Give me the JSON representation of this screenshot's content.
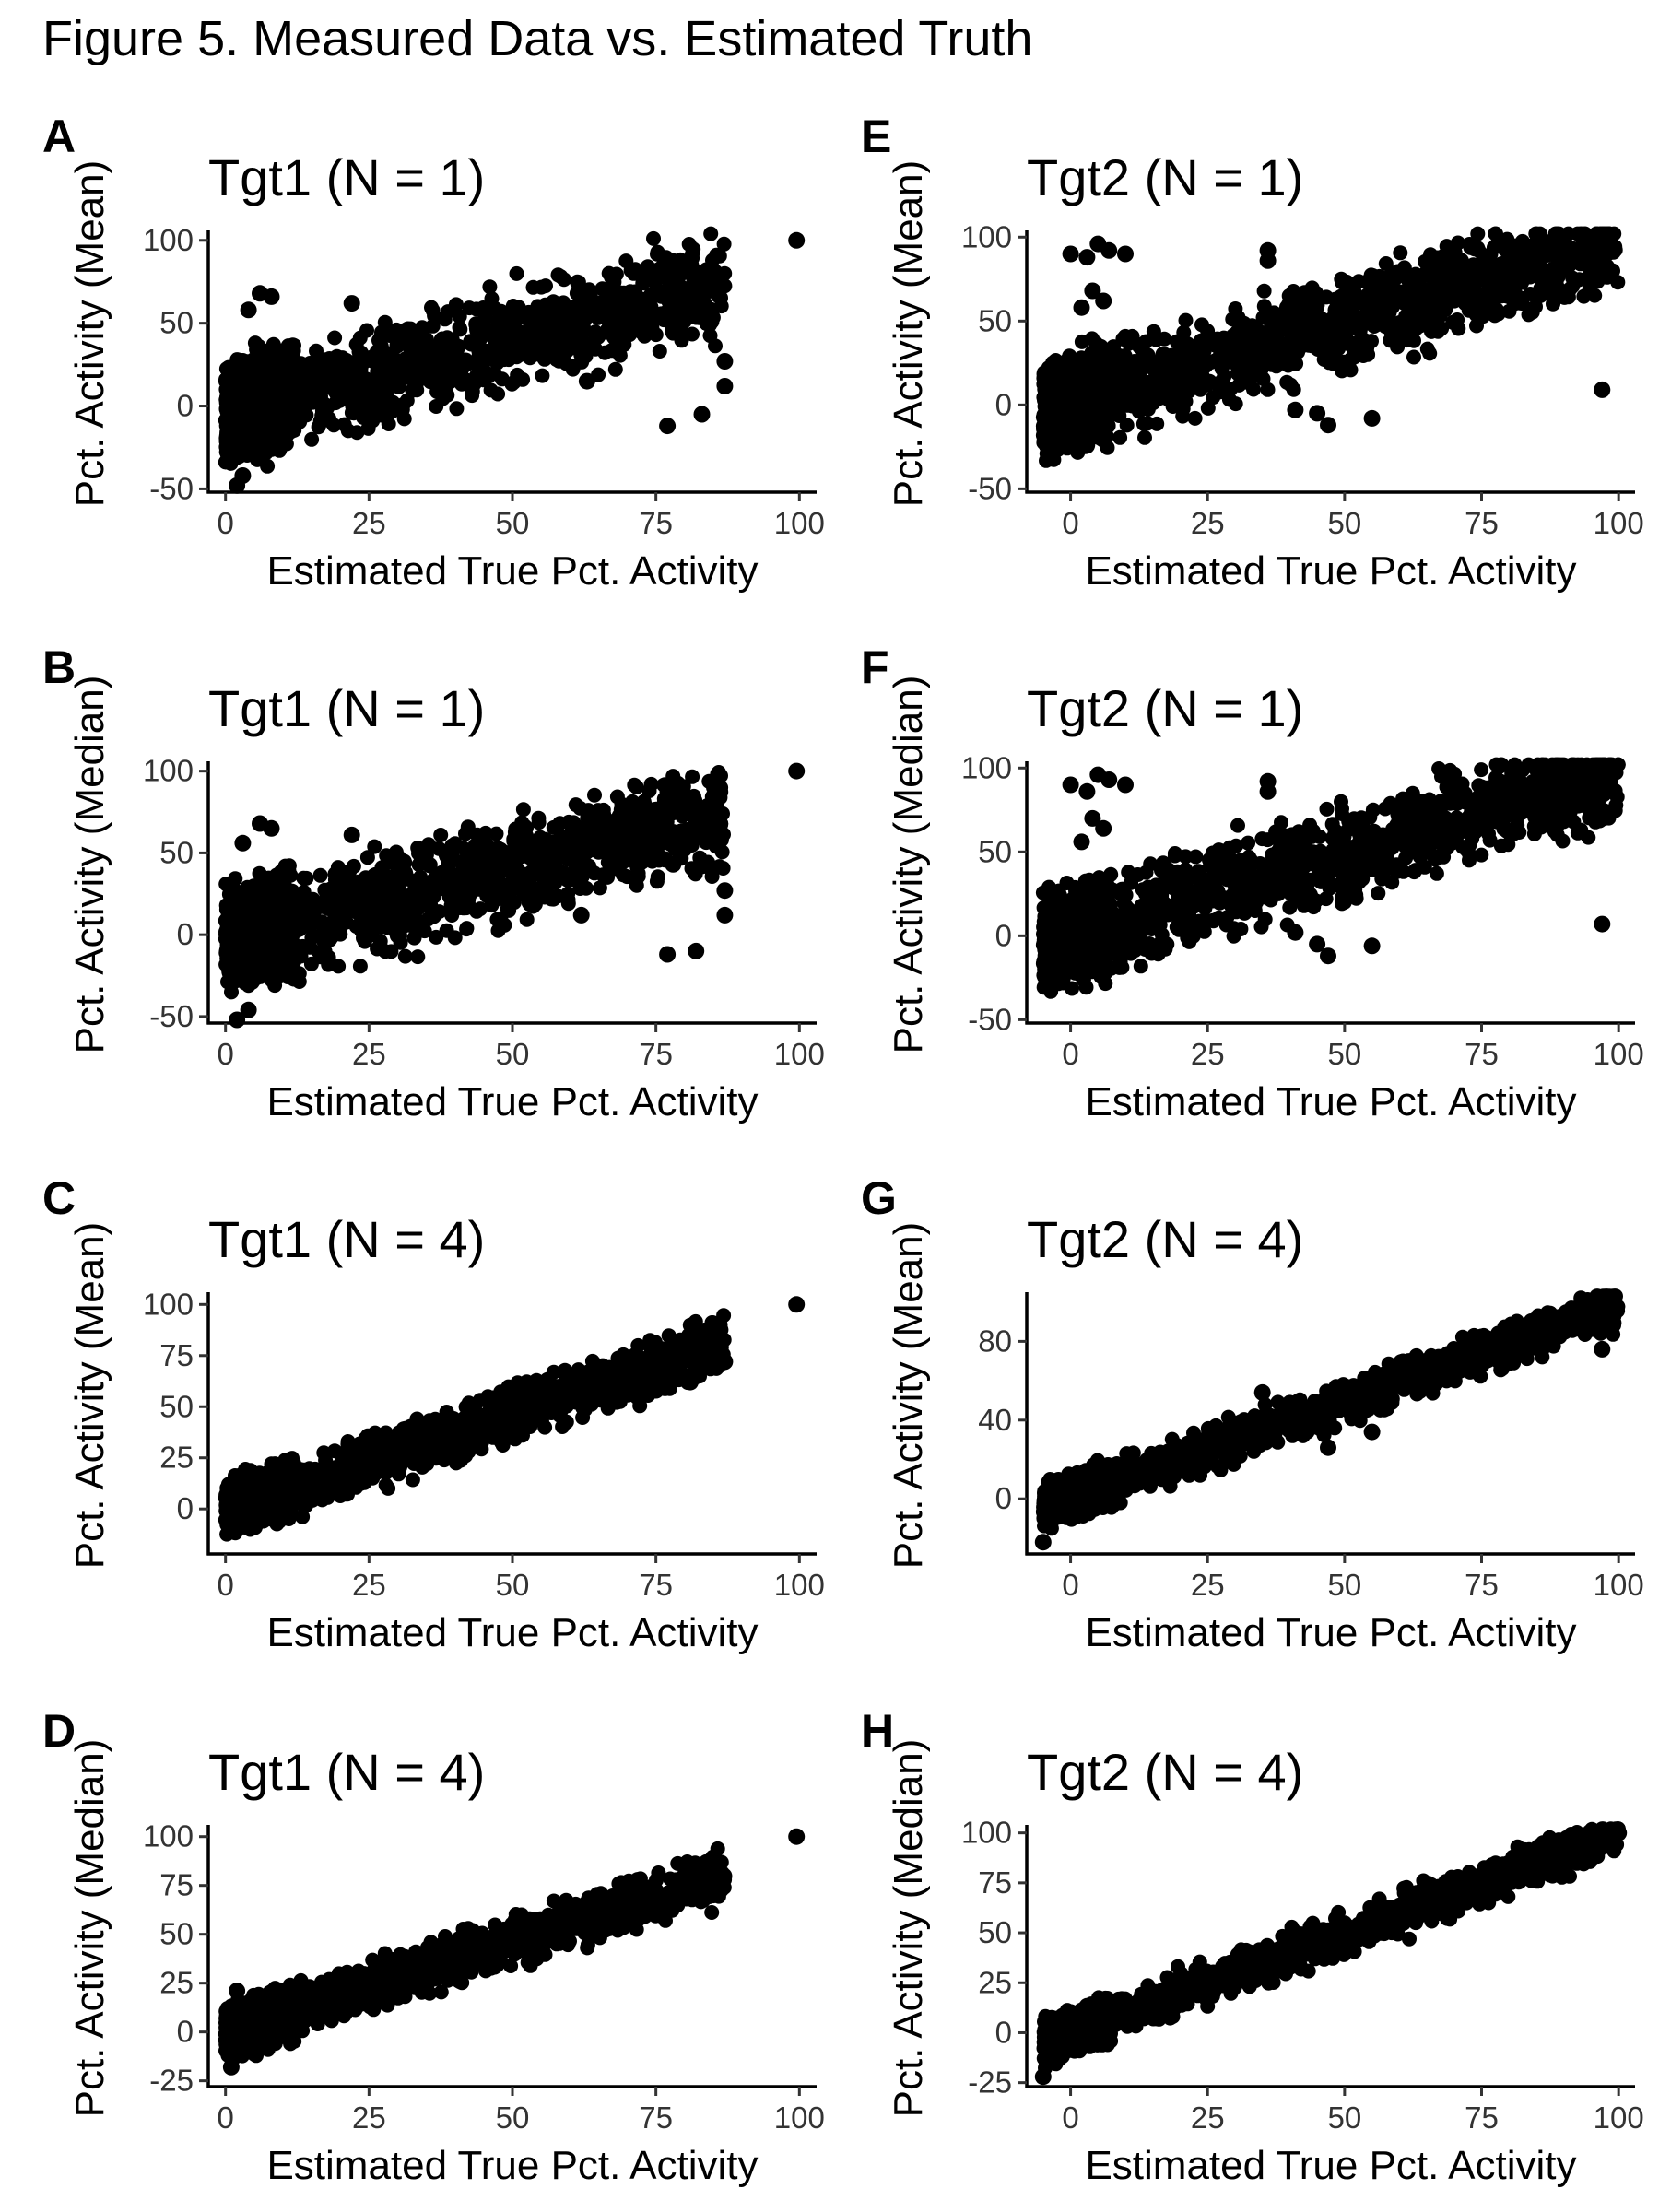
{
  "figure": {
    "title": "Figure 5. Measured Data vs. Estimated Truth"
  },
  "colors": {
    "points": "#000000",
    "axis": "#000000",
    "background": "#ffffff"
  },
  "chart_data": [
    {
      "panel": "A",
      "type": "scatter",
      "title": "Tgt1 (N = 1)",
      "xlabel": "Estimated True Pct. Activity",
      "ylabel": "Pct. Activity (Mean)",
      "xlim": [
        -3,
        103
      ],
      "ylim": [
        -52,
        106
      ],
      "xticks": [
        0,
        25,
        50,
        75,
        100
      ],
      "yticks": [
        -50,
        0,
        50,
        100
      ],
      "grid": false,
      "legend": "none",
      "trend": {
        "x_range": [
          0,
          87
        ],
        "slope": 0.88,
        "intercept": -3,
        "noise": 14
      },
      "points": [
        [
          99.5,
          100
        ],
        [
          6,
          68
        ],
        [
          8,
          66
        ],
        [
          4,
          58
        ],
        [
          22,
          62
        ],
        [
          77,
          -12
        ],
        [
          83,
          -5
        ],
        [
          87,
          12
        ],
        [
          87,
          27
        ],
        [
          78,
          45
        ],
        [
          63,
          15
        ],
        [
          2,
          -48
        ],
        [
          3,
          -42
        ]
      ]
    },
    {
      "panel": "B",
      "type": "scatter",
      "title": "Tgt1 (N = 1)",
      "xlabel": "Estimated True Pct. Activity",
      "ylabel": "Pct. Activity (Median)",
      "xlim": [
        -3,
        103
      ],
      "ylim": [
        -54,
        106
      ],
      "xticks": [
        0,
        25,
        50,
        75,
        100
      ],
      "yticks": [
        -50,
        0,
        50,
        100
      ],
      "grid": false,
      "legend": "none",
      "trend": {
        "x_range": [
          0,
          87
        ],
        "slope": 0.88,
        "intercept": -3,
        "noise": 14
      },
      "points": [
        [
          99.5,
          100
        ],
        [
          6,
          68
        ],
        [
          8,
          65
        ],
        [
          3,
          56
        ],
        [
          22,
          61
        ],
        [
          77,
          -12
        ],
        [
          82,
          -10
        ],
        [
          87,
          12
        ],
        [
          87,
          27
        ],
        [
          78,
          43
        ],
        [
          62,
          12
        ],
        [
          2,
          -52
        ],
        [
          4,
          -46
        ]
      ]
    },
    {
      "panel": "C",
      "type": "scatter",
      "title": "Tgt1 (N = 4)",
      "xlabel": "Estimated True Pct. Activity",
      "ylabel": "Pct. Activity (Mean)",
      "xlim": [
        -3,
        103
      ],
      "ylim": [
        -22,
        106
      ],
      "xticks": [
        0,
        25,
        50,
        75,
        100
      ],
      "yticks": [
        0,
        25,
        50,
        75,
        100
      ],
      "grid": false,
      "legend": "none",
      "trend": {
        "x_range": [
          0,
          87
        ],
        "slope": 0.92,
        "intercept": 0,
        "noise": 6
      },
      "points": [
        [
          99.5,
          100
        ],
        [
          75,
          58
        ],
        [
          81,
          62
        ],
        [
          87,
          72
        ]
      ]
    },
    {
      "panel": "D",
      "type": "scatter",
      "title": "Tgt1 (N = 4)",
      "xlabel": "Estimated True Pct. Activity",
      "ylabel": "Pct. Activity (Median)",
      "xlim": [
        -3,
        103
      ],
      "ylim": [
        -28,
        106
      ],
      "xticks": [
        0,
        25,
        50,
        75,
        100
      ],
      "yticks": [
        -25,
        0,
        25,
        50,
        75,
        100
      ],
      "grid": false,
      "legend": "none",
      "trend": {
        "x_range": [
          0,
          87
        ],
        "slope": 0.94,
        "intercept": -1,
        "noise": 6
      },
      "points": [
        [
          99.5,
          100
        ],
        [
          2,
          21
        ],
        [
          1,
          -18
        ]
      ]
    },
    {
      "panel": "E",
      "type": "scatter",
      "title": "Tgt2 (N = 1)",
      "xlabel": "Estimated True Pct. Activity",
      "ylabel": "Pct. Activity (Mean)",
      "xlim": [
        -8,
        103
      ],
      "ylim": [
        -52,
        104
      ],
      "xticks": [
        0,
        25,
        50,
        75,
        100
      ],
      "yticks": [
        -50,
        0,
        50,
        100
      ],
      "grid": false,
      "legend": "none",
      "trend": {
        "x_range": [
          -5,
          100
        ],
        "slope": 0.97,
        "intercept": 1,
        "noise": 13
      },
      "points": [
        [
          0,
          90
        ],
        [
          3,
          88
        ],
        [
          5,
          96
        ],
        [
          7,
          92
        ],
        [
          10,
          90
        ],
        [
          4,
          68
        ],
        [
          6,
          62
        ],
        [
          2,
          58
        ],
        [
          36,
          92
        ],
        [
          36,
          86
        ],
        [
          97,
          9
        ],
        [
          45,
          -5
        ],
        [
          47,
          -12
        ],
        [
          55,
          -8
        ],
        [
          41,
          -3
        ]
      ]
    },
    {
      "panel": "F",
      "type": "scatter",
      "title": "Tgt2 (N = 1)",
      "xlabel": "Estimated True Pct. Activity",
      "ylabel": "Pct. Activity (Median)",
      "xlim": [
        -8,
        103
      ],
      "ylim": [
        -52,
        104
      ],
      "xticks": [
        0,
        25,
        50,
        75,
        100
      ],
      "yticks": [
        -50,
        0,
        50,
        100
      ],
      "grid": false,
      "legend": "none",
      "trend": {
        "x_range": [
          -5,
          100
        ],
        "slope": 0.97,
        "intercept": 1,
        "noise": 13
      },
      "points": [
        [
          0,
          90
        ],
        [
          3,
          86
        ],
        [
          5,
          96
        ],
        [
          7,
          93
        ],
        [
          10,
          90
        ],
        [
          4,
          70
        ],
        [
          6,
          64
        ],
        [
          2,
          56
        ],
        [
          36,
          92
        ],
        [
          36,
          86
        ],
        [
          97,
          7
        ],
        [
          45,
          -5
        ],
        [
          47,
          -12
        ],
        [
          55,
          -6
        ],
        [
          41,
          2
        ]
      ]
    },
    {
      "panel": "G",
      "type": "scatter",
      "title": "Tgt2 (N = 4)",
      "xlabel": "Estimated True Pct. Activity",
      "ylabel": "Pct. Activity (Mean)",
      "xlim": [
        -8,
        103
      ],
      "ylim": [
        -28,
        105
      ],
      "xticks": [
        0,
        25,
        50,
        75,
        100
      ],
      "yticks": [
        0,
        40,
        80
      ],
      "grid": false,
      "legend": "none",
      "trend": {
        "x_range": [
          -5,
          100
        ],
        "slope": 0.97,
        "intercept": 1,
        "noise": 5
      },
      "points": [
        [
          97,
          76
        ],
        [
          35,
          54
        ],
        [
          47,
          26
        ],
        [
          55,
          34
        ],
        [
          -5,
          -22
        ]
      ]
    },
    {
      "panel": "H",
      "type": "scatter",
      "title": "Tgt2 (N = 4)",
      "xlabel": "Estimated True Pct. Activity",
      "ylabel": "Pct. Activity (Median)",
      "xlim": [
        -8,
        103
      ],
      "ylim": [
        -27,
        104
      ],
      "xticks": [
        0,
        25,
        50,
        75,
        100
      ],
      "yticks": [
        -25,
        0,
        25,
        50,
        75,
        100
      ],
      "grid": false,
      "legend": "none",
      "trend": {
        "x_range": [
          -5,
          100
        ],
        "slope": 0.99,
        "intercept": 0,
        "noise": 5
      },
      "points": [
        [
          -5,
          -22
        ],
        [
          100,
          100
        ]
      ]
    }
  ]
}
